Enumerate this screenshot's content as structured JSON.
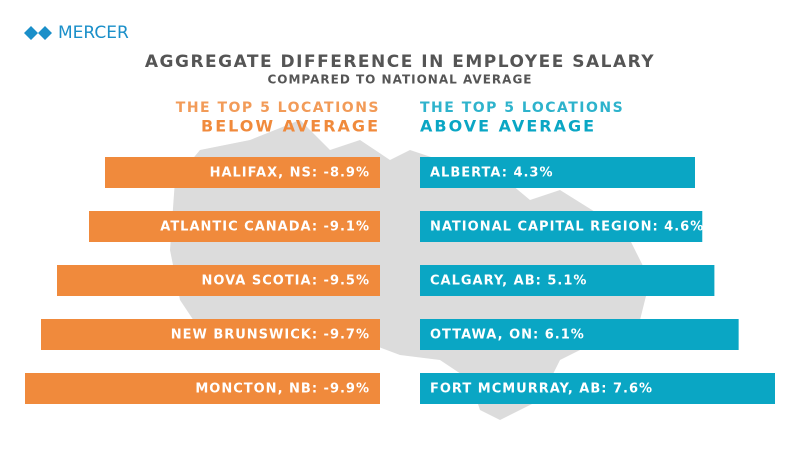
{
  "brand": "MERCER",
  "chart_data": {
    "type": "diverging-bar",
    "title": "AGGREGATE DIFFERENCE IN EMPLOYEE SALARY",
    "subtitle": "COMPARED TO NATIONAL AVERAGE",
    "series": [
      {
        "heading": "THE TOP 5 LOCATIONS",
        "name": "BELOW AVERAGE",
        "color": "#f08a3c",
        "values": [
          -8.9,
          -9.1,
          -9.5,
          -9.7,
          -9.9
        ],
        "value_labels": [
          "HALIFAX, NS: -8.9%",
          "ATLANTIC CANADA: -9.1%",
          "NOVA SCOTIA: -9.5%",
          "NEW BRUNSWICK: -9.7%",
          "MONCTON, NB: -9.9%"
        ]
      },
      {
        "heading": "THE TOP 5 LOCATIONS",
        "name": "ABOVE AVERAGE",
        "color": "#0aa6c4",
        "values": [
          4.3,
          4.6,
          5.1,
          6.1,
          7.6
        ],
        "value_labels": [
          "ALBERTA: 4.3%",
          "NATIONAL CAPITAL REGION: 4.6%",
          "CALGARY, AB: 5.1%",
          "OTTAWA, ON: 6.1%",
          "FORT MCMURRAY, AB: 7.6%"
        ]
      }
    ]
  }
}
